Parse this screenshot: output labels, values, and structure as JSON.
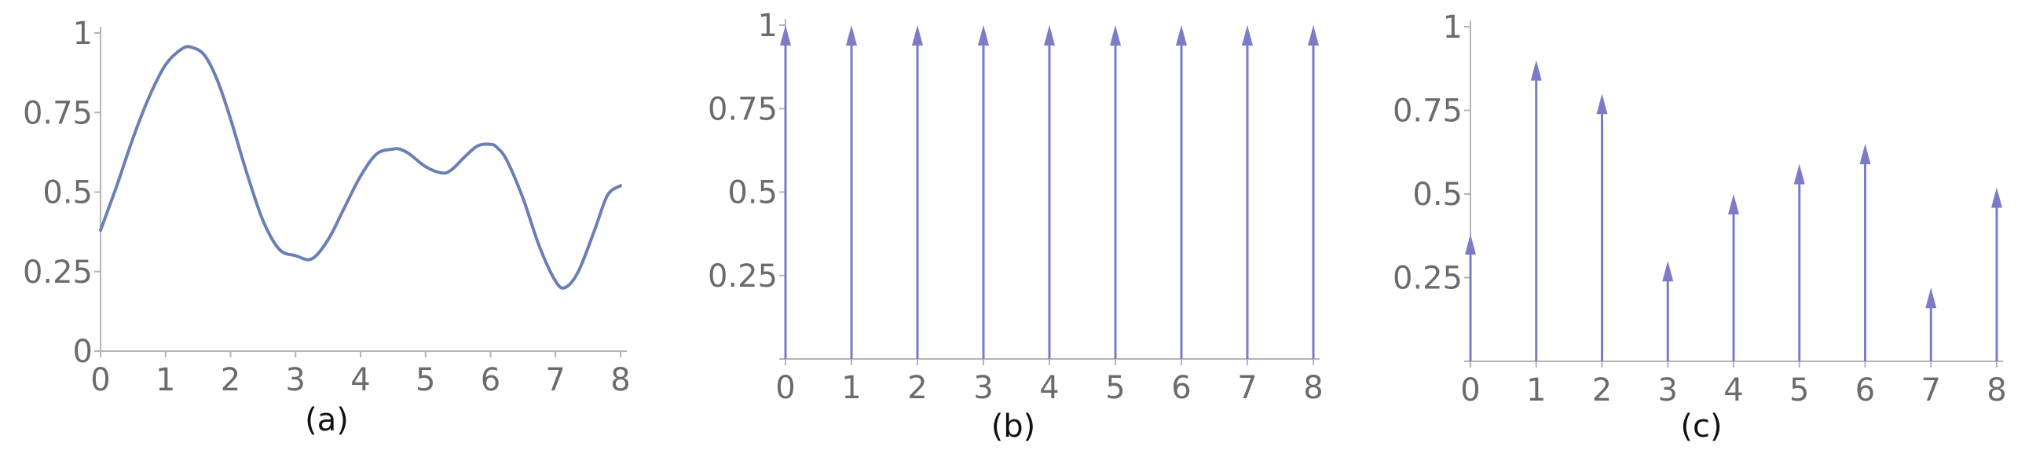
{
  "chart_data": [
    {
      "id": "a",
      "type": "line",
      "caption": "(a)",
      "color": "#6a7fb4",
      "xlim": [
        0,
        8
      ],
      "ylim": [
        0,
        1
      ],
      "xticks": [
        "0",
        "1",
        "2",
        "3",
        "4",
        "5",
        "6",
        "7",
        "8"
      ],
      "yticks": [
        "0",
        "0.25",
        "0.5",
        "0.75",
        "1"
      ],
      "series": [
        {
          "x": [
            0,
            0.25,
            0.5,
            0.75,
            1,
            1.25,
            1.4,
            1.6,
            1.8,
            2,
            2.25,
            2.5,
            2.75,
            3,
            3.25,
            3.5,
            3.75,
            4,
            4.25,
            4.5,
            4.6,
            4.75,
            5,
            5.25,
            5.4,
            5.6,
            5.8,
            6,
            6.1,
            6.25,
            6.5,
            6.75,
            7,
            7.15,
            7.35,
            7.6,
            7.8,
            8
          ],
          "y": [
            0.38,
            0.52,
            0.67,
            0.8,
            0.9,
            0.95,
            0.955,
            0.93,
            0.85,
            0.73,
            0.56,
            0.41,
            0.32,
            0.3,
            0.29,
            0.35,
            0.45,
            0.55,
            0.62,
            0.635,
            0.635,
            0.62,
            0.58,
            0.56,
            0.57,
            0.61,
            0.645,
            0.65,
            0.64,
            0.6,
            0.48,
            0.33,
            0.22,
            0.2,
            0.25,
            0.38,
            0.49,
            0.52
          ]
        }
      ]
    },
    {
      "id": "b",
      "type": "stem",
      "caption": "(b)",
      "color": "#7b7bc8",
      "xlim": [
        0,
        8
      ],
      "ylim": [
        0,
        1
      ],
      "xticks": [
        "0",
        "1",
        "2",
        "3",
        "4",
        "5",
        "6",
        "7",
        "8"
      ],
      "yticks": [
        "",
        "0.25",
        "0.5",
        "0.75",
        "1"
      ],
      "x": [
        0,
        1,
        2,
        3,
        4,
        5,
        6,
        7,
        8
      ],
      "values": [
        1,
        1,
        1,
        1,
        1,
        1,
        1,
        1,
        1
      ]
    },
    {
      "id": "c",
      "type": "stem",
      "caption": "(c)",
      "color": "#7b7bc8",
      "xlim": [
        0,
        8
      ],
      "ylim": [
        0,
        1
      ],
      "xticks": [
        "0",
        "1",
        "2",
        "3",
        "4",
        "5",
        "6",
        "7",
        "8"
      ],
      "yticks": [
        "",
        "0.25",
        "0.5",
        "0.75",
        "1"
      ],
      "x": [
        0,
        1,
        2,
        3,
        4,
        5,
        6,
        7,
        8
      ],
      "values": [
        0.38,
        0.9,
        0.8,
        0.3,
        0.5,
        0.59,
        0.65,
        0.22,
        0.52
      ]
    }
  ]
}
